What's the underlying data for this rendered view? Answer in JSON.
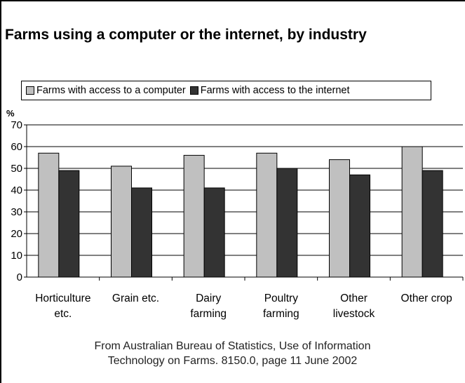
{
  "chart_data": {
    "type": "bar",
    "title": "Farms using a computer or the internet, by industry",
    "ylabel": "%",
    "ylim": [
      0,
      70
    ],
    "yticks": [
      0,
      10,
      20,
      30,
      40,
      50,
      60,
      70
    ],
    "grid": true,
    "legend_position": "top",
    "categories": [
      [
        "Horticulture",
        "etc."
      ],
      [
        "Grain etc."
      ],
      [
        "Dairy",
        "farming"
      ],
      [
        "Poultry",
        "farming"
      ],
      [
        "Other",
        "livestock"
      ],
      [
        "Other crop"
      ]
    ],
    "series": [
      {
        "name": "Farms with access to a computer",
        "color": "#c0c0c0",
        "values": [
          57,
          51,
          56,
          57,
          54,
          60
        ]
      },
      {
        "name": "Farms with access to the internet",
        "color": "#333333",
        "values": [
          49,
          41,
          41,
          50,
          47,
          49
        ]
      }
    ]
  },
  "source": {
    "line1": "From Australian Bureau of Statistics, Use of Information",
    "line2": "Technology on Farms. 8150.0, page 11 June 2002"
  }
}
